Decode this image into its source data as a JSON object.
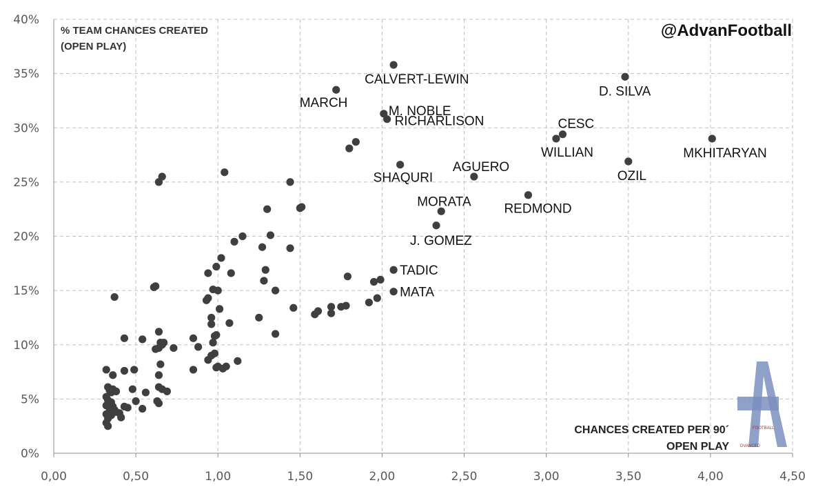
{
  "chart_data": {
    "type": "scatter",
    "title": "",
    "ylabel_lines": [
      "% TEAM CHANCES CREATED",
      "(OPEN PLAY)"
    ],
    "xlabel_lines": [
      "CHANCES CREATED PER 90´",
      "OPEN PLAY"
    ],
    "credit": "@AdvanFootball",
    "logo": {
      "letter": "A",
      "text_top": "FOOTBALL",
      "text_bottom": "DVANCED"
    },
    "xlim": [
      0,
      4.5
    ],
    "ylim": [
      0,
      0.4
    ],
    "x_ticks": [
      "0,00",
      "0,50",
      "1,00",
      "1,50",
      "2,00",
      "2,50",
      "3,00",
      "3,50",
      "4,00",
      "4,50"
    ],
    "y_ticks": [
      "0%",
      "5%",
      "10%",
      "15%",
      "20%",
      "25%",
      "30%",
      "35%",
      "40%"
    ],
    "grid": true,
    "marker_color": "#3f3f3f",
    "labeled_points": [
      {
        "name": "CALVERT-LEWIN",
        "x": 2.07,
        "y": 0.358
      },
      {
        "name": "D. SILVA",
        "x": 3.48,
        "y": 0.347
      },
      {
        "name": "MARCH",
        "x": 1.72,
        "y": 0.335
      },
      {
        "name": "M. NOBLE",
        "x": 2.01,
        "y": 0.313
      },
      {
        "name": "RICHARLISON",
        "x": 2.03,
        "y": 0.308
      },
      {
        "name": "CESC",
        "x": 3.1,
        "y": 0.294
      },
      {
        "name": "WILLIAN",
        "x": 3.06,
        "y": 0.29
      },
      {
        "name": "MKHITARYAN",
        "x": 4.01,
        "y": 0.29
      },
      {
        "name": "SHAQURI",
        "x": 2.11,
        "y": 0.266
      },
      {
        "name": "OZIL",
        "x": 3.5,
        "y": 0.269
      },
      {
        "name": "AGUERO",
        "x": 2.56,
        "y": 0.255
      },
      {
        "name": "REDMOND",
        "x": 2.89,
        "y": 0.238
      },
      {
        "name": "MORATA",
        "x": 2.36,
        "y": 0.223
      },
      {
        "name": "J. GOMEZ",
        "x": 2.33,
        "y": 0.21
      },
      {
        "name": "TADIC",
        "x": 2.07,
        "y": 0.169
      },
      {
        "name": "MATA",
        "x": 2.07,
        "y": 0.149
      }
    ],
    "points": [
      [
        1.8,
        0.281
      ],
      [
        1.84,
        0.287
      ],
      [
        0.64,
        0.25
      ],
      [
        0.66,
        0.255
      ],
      [
        1.04,
        0.259
      ],
      [
        1.44,
        0.25
      ],
      [
        1.3,
        0.225
      ],
      [
        1.5,
        0.226
      ],
      [
        1.51,
        0.227
      ],
      [
        1.15,
        0.2
      ],
      [
        1.32,
        0.201
      ],
      [
        1.1,
        0.195
      ],
      [
        1.27,
        0.19
      ],
      [
        1.44,
        0.189
      ],
      [
        1.02,
        0.18
      ],
      [
        1.29,
        0.169
      ],
      [
        0.99,
        0.172
      ],
      [
        0.94,
        0.166
      ],
      [
        1.08,
        0.166
      ],
      [
        1.28,
        0.159
      ],
      [
        1.35,
        0.15
      ],
      [
        1.79,
        0.163
      ],
      [
        1.95,
        0.158
      ],
      [
        1.99,
        0.16
      ],
      [
        0.61,
        0.153
      ],
      [
        0.62,
        0.154
      ],
      [
        0.37,
        0.144
      ],
      [
        0.97,
        0.151
      ],
      [
        1.0,
        0.15
      ],
      [
        0.93,
        0.141
      ],
      [
        0.94,
        0.143
      ],
      [
        1.69,
        0.135
      ],
      [
        1.75,
        0.135
      ],
      [
        1.78,
        0.136
      ],
      [
        1.92,
        0.139
      ],
      [
        1.97,
        0.143
      ],
      [
        1.46,
        0.134
      ],
      [
        1.59,
        0.128
      ],
      [
        1.61,
        0.131
      ],
      [
        1.69,
        0.129
      ],
      [
        0.96,
        0.125
      ],
      [
        1.01,
        0.133
      ],
      [
        1.25,
        0.125
      ],
      [
        0.96,
        0.119
      ],
      [
        1.07,
        0.12
      ],
      [
        0.64,
        0.112
      ],
      [
        0.43,
        0.106
      ],
      [
        0.54,
        0.105
      ],
      [
        0.85,
        0.106
      ],
      [
        0.65,
        0.102
      ],
      [
        0.66,
        0.1
      ],
      [
        0.67,
        0.102
      ],
      [
        1.35,
        0.11
      ],
      [
        0.98,
        0.108
      ],
      [
        0.97,
        0.102
      ],
      [
        0.99,
        0.109
      ],
      [
        0.62,
        0.096
      ],
      [
        0.64,
        0.097
      ],
      [
        0.73,
        0.097
      ],
      [
        0.88,
        0.098
      ],
      [
        1.12,
        0.085
      ],
      [
        0.94,
        0.086
      ],
      [
        0.96,
        0.09
      ],
      [
        0.98,
        0.092
      ],
      [
        1.0,
        0.08
      ],
      [
        1.03,
        0.078
      ],
      [
        1.05,
        0.08
      ],
      [
        0.99,
        0.079
      ],
      [
        0.85,
        0.077
      ],
      [
        0.65,
        0.082
      ],
      [
        0.32,
        0.077
      ],
      [
        0.36,
        0.072
      ],
      [
        0.43,
        0.076
      ],
      [
        0.49,
        0.077
      ],
      [
        0.64,
        0.072
      ],
      [
        0.33,
        0.061
      ],
      [
        0.34,
        0.058
      ],
      [
        0.35,
        0.056
      ],
      [
        0.36,
        0.059
      ],
      [
        0.38,
        0.057
      ],
      [
        0.48,
        0.059
      ],
      [
        0.56,
        0.056
      ],
      [
        0.64,
        0.061
      ],
      [
        0.66,
        0.059
      ],
      [
        0.69,
        0.057
      ],
      [
        0.32,
        0.052
      ],
      [
        0.33,
        0.049
      ],
      [
        0.35,
        0.047
      ],
      [
        0.32,
        0.044
      ],
      [
        0.34,
        0.041
      ],
      [
        0.36,
        0.043
      ],
      [
        0.37,
        0.04
      ],
      [
        0.4,
        0.037
      ],
      [
        0.43,
        0.043
      ],
      [
        0.45,
        0.042
      ],
      [
        0.5,
        0.048
      ],
      [
        0.54,
        0.041
      ],
      [
        0.63,
        0.048
      ],
      [
        0.64,
        0.046
      ],
      [
        0.32,
        0.036
      ],
      [
        0.33,
        0.032
      ],
      [
        0.35,
        0.035
      ],
      [
        0.38,
        0.038
      ],
      [
        0.41,
        0.033
      ],
      [
        0.32,
        0.028
      ],
      [
        0.33,
        0.025
      ]
    ]
  },
  "label_positions": {}
}
